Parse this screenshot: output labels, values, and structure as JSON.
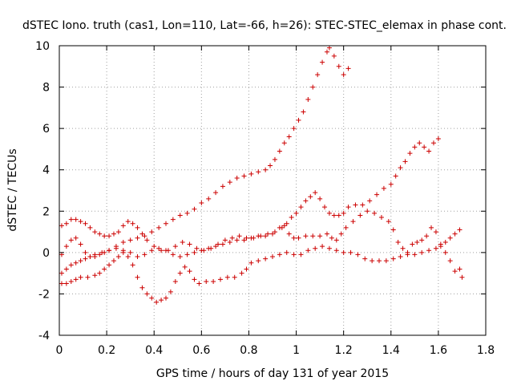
{
  "chart_data": {
    "type": "scatter",
    "title": "dSTEC Iono. truth (cas1, Lon=110, Lat=-66, h=26): STEC-STEC_elemax in phase cont.",
    "xlabel": "GPS time / hours of day 131 of year 2015",
    "ylabel": "dSTEC  / TECUs",
    "xlim": [
      0,
      1.8
    ],
    "ylim": [
      -4,
      10
    ],
    "x_ticks": [
      0,
      0.2,
      0.4,
      0.6,
      0.8,
      1,
      1.2,
      1.4,
      1.6,
      1.8
    ],
    "x_tick_labels": [
      "0",
      "0.2",
      "0.4",
      "0.6",
      "0.8",
      "1",
      "1.2",
      "1.4",
      "1.6",
      "1.8"
    ],
    "y_ticks": [
      -4,
      -2,
      0,
      2,
      4,
      6,
      8,
      10
    ],
    "y_tick_labels": [
      "-4",
      "-2",
      "0",
      "2",
      "4",
      "6",
      "8",
      "10"
    ],
    "grid": true,
    "marker": "+",
    "marker_color": "#cc0000",
    "series": [
      {
        "points": [
          [
            0.01,
            -1.5
          ],
          [
            0.03,
            -1.5
          ],
          [
            0.05,
            -1.4
          ],
          [
            0.07,
            -1.3
          ],
          [
            0.09,
            -1.2
          ],
          [
            0.12,
            -1.2
          ],
          [
            0.15,
            -1.1
          ],
          [
            0.17,
            -1.0
          ],
          [
            0.19,
            -0.8
          ],
          [
            0.21,
            -0.6
          ],
          [
            0.23,
            -0.4
          ],
          [
            0.25,
            -0.2
          ],
          [
            0.27,
            0.0
          ],
          [
            0.29,
            -0.2
          ],
          [
            0.31,
            -0.6
          ],
          [
            0.33,
            -1.2
          ],
          [
            0.35,
            -1.7
          ],
          [
            0.37,
            -2.0
          ],
          [
            0.39,
            -2.2
          ],
          [
            0.41,
            -2.4
          ],
          [
            0.43,
            -2.3
          ],
          [
            0.45,
            -2.2
          ],
          [
            0.47,
            -1.9
          ],
          [
            0.49,
            -1.4
          ],
          [
            0.51,
            -1.0
          ],
          [
            0.53,
            -0.7
          ],
          [
            0.55,
            -0.9
          ],
          [
            0.57,
            -1.3
          ],
          [
            0.59,
            -1.5
          ],
          [
            0.62,
            -1.4
          ],
          [
            0.65,
            -1.4
          ],
          [
            0.68,
            -1.3
          ],
          [
            0.71,
            -1.2
          ],
          [
            0.74,
            -1.2
          ],
          [
            0.77,
            -1.0
          ],
          [
            0.79,
            -0.8
          ],
          [
            0.81,
            -0.5
          ],
          [
            0.84,
            -0.4
          ],
          [
            0.87,
            -0.3
          ],
          [
            0.9,
            -0.2
          ],
          [
            0.93,
            -0.1
          ],
          [
            0.96,
            0.0
          ],
          [
            0.99,
            -0.1
          ],
          [
            1.02,
            -0.1
          ],
          [
            1.05,
            0.1
          ],
          [
            1.08,
            0.2
          ],
          [
            1.11,
            0.3
          ],
          [
            1.14,
            0.2
          ],
          [
            1.17,
            0.1
          ],
          [
            1.2,
            0.0
          ],
          [
            1.23,
            0.0
          ],
          [
            1.26,
            -0.1
          ],
          [
            1.29,
            -0.3
          ],
          [
            1.32,
            -0.4
          ],
          [
            1.35,
            -0.4
          ],
          [
            1.38,
            -0.4
          ],
          [
            1.41,
            -0.3
          ],
          [
            1.44,
            -0.2
          ],
          [
            1.47,
            -0.1
          ],
          [
            1.5,
            -0.1
          ],
          [
            1.53,
            0.0
          ],
          [
            1.56,
            0.1
          ],
          [
            1.59,
            0.2
          ],
          [
            1.61,
            0.3
          ],
          [
            1.63,
            0.5
          ],
          [
            1.65,
            0.7
          ],
          [
            1.67,
            0.9
          ],
          [
            1.69,
            1.1
          ]
        ]
      },
      {
        "points": [
          [
            0.01,
            -1.0
          ],
          [
            0.03,
            -0.8
          ],
          [
            0.05,
            -0.6
          ],
          [
            0.07,
            -0.5
          ],
          [
            0.09,
            -0.4
          ],
          [
            0.11,
            -0.3
          ],
          [
            0.13,
            -0.2
          ],
          [
            0.15,
            -0.1
          ],
          [
            0.18,
            0.0
          ],
          [
            0.21,
            0.1
          ],
          [
            0.24,
            0.3
          ],
          [
            0.27,
            0.5
          ],
          [
            0.3,
            0.6
          ],
          [
            0.33,
            0.7
          ],
          [
            0.36,
            0.8
          ],
          [
            0.39,
            1.0
          ],
          [
            0.42,
            1.2
          ],
          [
            0.45,
            1.4
          ],
          [
            0.48,
            1.6
          ],
          [
            0.51,
            1.8
          ],
          [
            0.54,
            1.9
          ],
          [
            0.57,
            2.1
          ],
          [
            0.6,
            2.4
          ],
          [
            0.63,
            2.6
          ],
          [
            0.66,
            2.9
          ],
          [
            0.69,
            3.2
          ],
          [
            0.72,
            3.4
          ],
          [
            0.75,
            3.6
          ],
          [
            0.78,
            3.7
          ],
          [
            0.81,
            3.8
          ],
          [
            0.84,
            3.9
          ],
          [
            0.87,
            4.0
          ],
          [
            0.89,
            4.2
          ],
          [
            0.91,
            4.5
          ],
          [
            0.93,
            4.9
          ],
          [
            0.95,
            5.3
          ],
          [
            0.97,
            5.6
          ],
          [
            0.99,
            6.0
          ],
          [
            1.01,
            6.4
          ],
          [
            1.03,
            6.8
          ],
          [
            1.05,
            7.4
          ],
          [
            1.07,
            8.0
          ],
          [
            1.09,
            8.6
          ],
          [
            1.11,
            9.2
          ],
          [
            1.13,
            9.7
          ],
          [
            1.14,
            9.9
          ],
          [
            1.16,
            9.5
          ],
          [
            1.18,
            9.0
          ],
          [
            1.2,
            8.6
          ],
          [
            1.22,
            8.9
          ]
        ]
      },
      {
        "points": [
          [
            0.01,
            1.3
          ],
          [
            0.03,
            1.4
          ],
          [
            0.05,
            1.6
          ],
          [
            0.07,
            1.6
          ],
          [
            0.09,
            1.5
          ],
          [
            0.11,
            1.4
          ],
          [
            0.13,
            1.2
          ],
          [
            0.15,
            1.0
          ],
          [
            0.17,
            0.9
          ],
          [
            0.19,
            0.8
          ],
          [
            0.21,
            0.8
          ],
          [
            0.23,
            0.9
          ],
          [
            0.25,
            1.0
          ],
          [
            0.27,
            1.3
          ],
          [
            0.29,
            1.5
          ],
          [
            0.31,
            1.4
          ],
          [
            0.33,
            1.2
          ],
          [
            0.35,
            0.9
          ],
          [
            0.37,
            0.6
          ],
          [
            0.4,
            0.3
          ],
          [
            0.43,
            0.1
          ],
          [
            0.46,
            0.1
          ],
          [
            0.49,
            0.3
          ],
          [
            0.52,
            0.5
          ],
          [
            0.55,
            0.4
          ],
          [
            0.58,
            0.2
          ],
          [
            0.61,
            0.1
          ],
          [
            0.64,
            0.2
          ],
          [
            0.67,
            0.4
          ],
          [
            0.7,
            0.6
          ],
          [
            0.73,
            0.7
          ],
          [
            0.76,
            0.8
          ],
          [
            0.79,
            0.7
          ],
          [
            0.82,
            0.7
          ],
          [
            0.85,
            0.8
          ],
          [
            0.88,
            0.9
          ],
          [
            0.91,
            1.0
          ],
          [
            0.94,
            1.2
          ],
          [
            0.96,
            1.4
          ],
          [
            0.98,
            1.7
          ],
          [
            1.0,
            1.9
          ],
          [
            1.02,
            2.2
          ],
          [
            1.04,
            2.5
          ],
          [
            1.06,
            2.7
          ],
          [
            1.08,
            2.9
          ],
          [
            1.1,
            2.6
          ],
          [
            1.12,
            2.2
          ],
          [
            1.14,
            1.9
          ],
          [
            1.16,
            1.8
          ],
          [
            1.18,
            1.8
          ],
          [
            1.2,
            1.9
          ],
          [
            1.22,
            2.2
          ],
          [
            1.25,
            2.3
          ],
          [
            1.28,
            2.3
          ],
          [
            1.31,
            2.5
          ],
          [
            1.34,
            2.8
          ],
          [
            1.37,
            3.1
          ],
          [
            1.4,
            3.3
          ],
          [
            1.42,
            3.7
          ],
          [
            1.44,
            4.1
          ],
          [
            1.46,
            4.4
          ],
          [
            1.48,
            4.8
          ],
          [
            1.5,
            5.1
          ],
          [
            1.52,
            5.3
          ],
          [
            1.54,
            5.1
          ],
          [
            1.56,
            4.9
          ],
          [
            1.58,
            5.3
          ],
          [
            1.6,
            5.5
          ]
        ]
      },
      {
        "points": [
          [
            0.01,
            -0.1
          ],
          [
            0.03,
            0.3
          ],
          [
            0.05,
            0.6
          ],
          [
            0.07,
            0.7
          ],
          [
            0.09,
            0.4
          ],
          [
            0.11,
            0.0
          ],
          [
            0.13,
            -0.2
          ],
          [
            0.15,
            -0.2
          ],
          [
            0.17,
            -0.1
          ],
          [
            0.19,
            0.0
          ],
          [
            0.21,
            0.1
          ],
          [
            0.24,
            0.2
          ],
          [
            0.27,
            0.1
          ],
          [
            0.3,
            0.0
          ],
          [
            0.33,
            -0.2
          ],
          [
            0.36,
            -0.1
          ],
          [
            0.39,
            0.1
          ],
          [
            0.42,
            0.2
          ],
          [
            0.45,
            0.1
          ],
          [
            0.48,
            -0.1
          ],
          [
            0.51,
            -0.2
          ],
          [
            0.54,
            -0.1
          ],
          [
            0.57,
            0.0
          ],
          [
            0.6,
            0.1
          ],
          [
            0.63,
            0.2
          ],
          [
            0.66,
            0.3
          ],
          [
            0.69,
            0.4
          ],
          [
            0.72,
            0.5
          ],
          [
            0.75,
            0.6
          ],
          [
            0.78,
            0.6
          ],
          [
            0.81,
            0.7
          ],
          [
            0.84,
            0.8
          ],
          [
            0.87,
            0.8
          ],
          [
            0.9,
            0.9
          ],
          [
            0.93,
            1.2
          ],
          [
            0.95,
            1.3
          ],
          [
            0.97,
            0.9
          ],
          [
            0.99,
            0.7
          ],
          [
            1.01,
            0.7
          ],
          [
            1.04,
            0.8
          ],
          [
            1.07,
            0.8
          ],
          [
            1.1,
            0.8
          ],
          [
            1.13,
            0.9
          ],
          [
            1.15,
            0.7
          ],
          [
            1.17,
            0.6
          ],
          [
            1.19,
            0.9
          ],
          [
            1.21,
            1.2
          ],
          [
            1.24,
            1.5
          ],
          [
            1.27,
            1.8
          ],
          [
            1.3,
            2.0
          ],
          [
            1.33,
            1.9
          ],
          [
            1.36,
            1.7
          ],
          [
            1.39,
            1.5
          ],
          [
            1.41,
            1.1
          ],
          [
            1.43,
            0.5
          ],
          [
            1.45,
            0.2
          ],
          [
            1.47,
            0.0
          ],
          [
            1.49,
            0.4
          ],
          [
            1.51,
            0.5
          ],
          [
            1.53,
            0.6
          ],
          [
            1.55,
            0.8
          ],
          [
            1.57,
            1.2
          ],
          [
            1.59,
            1.0
          ],
          [
            1.61,
            0.4
          ],
          [
            1.63,
            0.0
          ],
          [
            1.65,
            -0.4
          ],
          [
            1.67,
            -0.9
          ],
          [
            1.69,
            -0.8
          ],
          [
            1.7,
            -1.2
          ]
        ]
      }
    ]
  }
}
